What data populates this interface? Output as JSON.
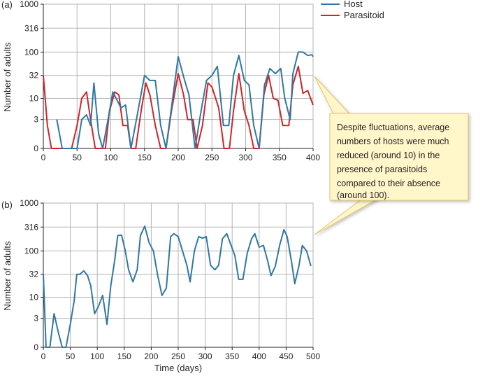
{
  "chart_data": [
    {
      "type": "line",
      "panel_label": "(a)",
      "title": "",
      "xlabel": "",
      "ylabel": "Number of adults",
      "x_ticks": [
        0,
        50,
        100,
        150,
        200,
        250,
        300,
        350,
        400
      ],
      "xlim": [
        0,
        400
      ],
      "y_scale": "log(1+y)",
      "y_ticks": [
        "0",
        "3",
        "10",
        "32",
        "100",
        "316",
        "1000"
      ],
      "ylim": [
        0,
        1000
      ],
      "grid": true,
      "legend": {
        "placement": "top-right",
        "entries": [
          {
            "label": "Host",
            "color": "#2f78a3"
          },
          {
            "label": "Parasitoid",
            "color": "#d2232a"
          }
        ]
      },
      "series": [
        {
          "name": "Host",
          "color": "#2f78a3",
          "points": [
            [
              20,
              3
            ],
            [
              28,
              0
            ],
            [
              42,
              0
            ],
            [
              50,
              0
            ],
            [
              57,
              3
            ],
            [
              64,
              4
            ],
            [
              70,
              2
            ],
            [
              75,
              22
            ],
            [
              82,
              1
            ],
            [
              88,
              0
            ],
            [
              96,
              3
            ],
            [
              103,
              14
            ],
            [
              108,
              10
            ],
            [
              115,
              6
            ],
            [
              122,
              7
            ],
            [
              130,
              0
            ],
            [
              138,
              3
            ],
            [
              150,
              32
            ],
            [
              158,
              25
            ],
            [
              166,
              25
            ],
            [
              174,
              2
            ],
            [
              182,
              0
            ],
            [
              190,
              6
            ],
            [
              200,
              80
            ],
            [
              208,
              30
            ],
            [
              216,
              12
            ],
            [
              225,
              0
            ],
            [
              233,
              4
            ],
            [
              242,
              25
            ],
            [
              250,
              32
            ],
            [
              258,
              50
            ],
            [
              267,
              2
            ],
            [
              275,
              2
            ],
            [
              282,
              32
            ],
            [
              290,
              85
            ],
            [
              298,
              25
            ],
            [
              305,
              20
            ],
            [
              312,
              2
            ],
            [
              320,
              0
            ],
            [
              328,
              20
            ],
            [
              336,
              45
            ],
            [
              344,
              35
            ],
            [
              352,
              45
            ],
            [
              358,
              10
            ],
            [
              366,
              3
            ],
            [
              370,
              35
            ],
            [
              378,
              100
            ],
            [
              385,
              100
            ],
            [
              392,
              85
            ],
            [
              398,
              88
            ],
            [
              400,
              80
            ]
          ]
        },
        {
          "name": "Parasitoid",
          "color": "#d2232a",
          "points": [
            [
              0,
              32
            ],
            [
              6,
              2
            ],
            [
              12,
              0
            ],
            [
              20,
              0
            ],
            [
              28,
              0
            ],
            [
              35,
              0
            ],
            [
              42,
              0
            ],
            [
              50,
              2
            ],
            [
              57,
              10
            ],
            [
              64,
              14
            ],
            [
              70,
              3
            ],
            [
              77,
              0
            ],
            [
              84,
              0
            ],
            [
              92,
              0
            ],
            [
              98,
              5
            ],
            [
              106,
              14
            ],
            [
              112,
              12
            ],
            [
              118,
              2
            ],
            [
              125,
              2
            ],
            [
              130,
              0
            ],
            [
              137,
              0
            ],
            [
              145,
              5
            ],
            [
              152,
              22
            ],
            [
              158,
              12
            ],
            [
              166,
              2
            ],
            [
              174,
              0
            ],
            [
              182,
              0
            ],
            [
              190,
              5
            ],
            [
              200,
              35
            ],
            [
              208,
              12
            ],
            [
              214,
              3
            ],
            [
              222,
              3
            ],
            [
              228,
              0
            ],
            [
              236,
              2
            ],
            [
              244,
              22
            ],
            [
              250,
              18
            ],
            [
              260,
              6
            ],
            [
              268,
              0
            ],
            [
              276,
              0
            ],
            [
              282,
              5
            ],
            [
              290,
              35
            ],
            [
              298,
              5
            ],
            [
              305,
              2
            ],
            [
              312,
              0
            ],
            [
              320,
              0
            ],
            [
              327,
              12
            ],
            [
              334,
              32
            ],
            [
              341,
              10
            ],
            [
              348,
              9
            ],
            [
              355,
              2
            ],
            [
              364,
              2
            ],
            [
              370,
              20
            ],
            [
              378,
              50
            ],
            [
              385,
              13
            ],
            [
              392,
              15
            ],
            [
              400,
              7
            ]
          ]
        }
      ]
    },
    {
      "type": "line",
      "panel_label": "(b)",
      "title": "",
      "xlabel": "Time (days)",
      "ylabel": "Number of adults",
      "x_ticks": [
        0,
        50,
        100,
        150,
        200,
        250,
        300,
        350,
        400,
        450,
        500
      ],
      "xlim": [
        0,
        500
      ],
      "y_scale": "log(1+y)",
      "y_ticks": [
        "0",
        "3",
        "10",
        "32",
        "100",
        "316",
        "1000"
      ],
      "ylim": [
        0,
        1000
      ],
      "grid": true,
      "series": [
        {
          "name": "Host",
          "color": "#2f78a3",
          "points": [
            [
              0,
              32
            ],
            [
              5,
              0
            ],
            [
              12,
              0
            ],
            [
              20,
              4
            ],
            [
              28,
              1
            ],
            [
              35,
              0
            ],
            [
              42,
              0
            ],
            [
              50,
              2
            ],
            [
              57,
              8
            ],
            [
              62,
              32
            ],
            [
              68,
              32
            ],
            [
              75,
              38
            ],
            [
              82,
              30
            ],
            [
              88,
              18
            ],
            [
              95,
              4
            ],
            [
              102,
              6
            ],
            [
              110,
              11
            ],
            [
              118,
              2
            ],
            [
              125,
              18
            ],
            [
              132,
              60
            ],
            [
              138,
              210
            ],
            [
              145,
              215
            ],
            [
              152,
              100
            ],
            [
              158,
              40
            ],
            [
              166,
              22
            ],
            [
              174,
              40
            ],
            [
              180,
              210
            ],
            [
              188,
              330
            ],
            [
              196,
              150
            ],
            [
              204,
              100
            ],
            [
              212,
              30
            ],
            [
              220,
              11
            ],
            [
              228,
              16
            ],
            [
              236,
              200
            ],
            [
              242,
              230
            ],
            [
              250,
              200
            ],
            [
              258,
              100
            ],
            [
              266,
              50
            ],
            [
              272,
              22
            ],
            [
              280,
              100
            ],
            [
              288,
              200
            ],
            [
              295,
              185
            ],
            [
              302,
              200
            ],
            [
              310,
              50
            ],
            [
              318,
              40
            ],
            [
              325,
              50
            ],
            [
              332,
              180
            ],
            [
              340,
              230
            ],
            [
              348,
              130
            ],
            [
              355,
              80
            ],
            [
              362,
              25
            ],
            [
              370,
              25
            ],
            [
              378,
              90
            ],
            [
              386,
              180
            ],
            [
              392,
              230
            ],
            [
              400,
              120
            ],
            [
              408,
              130
            ],
            [
              416,
              60
            ],
            [
              422,
              30
            ],
            [
              430,
              48
            ],
            [
              438,
              130
            ],
            [
              446,
              280
            ],
            [
              452,
              200
            ],
            [
              460,
              60
            ],
            [
              466,
              20
            ],
            [
              474,
              50
            ],
            [
              480,
              130
            ],
            [
              488,
              100
            ],
            [
              496,
              48
            ]
          ]
        }
      ]
    }
  ],
  "annotation": {
    "text_lines": [
      "Despite fluctuations, average",
      "numbers of hosts were much",
      "reduced (around 10) in the",
      "presence of parasitoids",
      "compared to their absence",
      "(around 100)."
    ],
    "fill_color": "#fff6c9",
    "border_color": "#e2c76a"
  }
}
